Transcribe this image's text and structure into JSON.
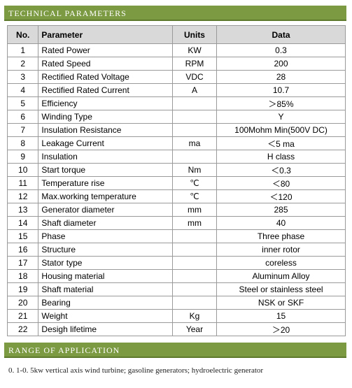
{
  "header": {
    "title": "TECHNICAL PARAMETERS"
  },
  "table": {
    "columns": [
      "No.",
      "Parameter",
      "Units",
      "Data"
    ],
    "rows": [
      {
        "no": "1",
        "parameter": "Rated Power",
        "units": "KW",
        "data": "0.3"
      },
      {
        "no": "2",
        "parameter": "Rated Speed",
        "units": "RPM",
        "data": "200"
      },
      {
        "no": "3",
        "parameter": "Rectified Rated Voltage",
        "units": "VDC",
        "data": "28"
      },
      {
        "no": "4",
        "parameter": "Rectified Rated Current",
        "units": "A",
        "data": "10.7"
      },
      {
        "no": "5",
        "parameter": "Efficiency",
        "data": "＞85%"
      },
      {
        "no": "6",
        "parameter": "Winding Type",
        "data": "Y"
      },
      {
        "no": "7",
        "parameter": "Insulation Resistance",
        "data": "100Mohm Min(500V DC)"
      },
      {
        "no": "8",
        "parameter": "Leakage Current",
        "units": "ma",
        "data": "＜5 ma"
      },
      {
        "no": "9",
        "parameter": "Insulation",
        "data": "H class"
      },
      {
        "no": "10",
        "parameter": "Start torque",
        "units": "Nm",
        "data": "＜0.3"
      },
      {
        "no": "11",
        "parameter": "Temperature rise",
        "units": "℃",
        "data": "＜80"
      },
      {
        "no": "12",
        "parameter": "Max.working temperature",
        "units": "℃",
        "data": "＜120"
      },
      {
        "no": "13",
        "parameter": "Generator diameter",
        "units": "mm",
        "data": "285"
      },
      {
        "no": "14",
        "parameter": "Shaft diameter",
        "units": "mm",
        "data": "40"
      },
      {
        "no": "15",
        "parameter": "Phase",
        "data": "Three phase"
      },
      {
        "no": "16",
        "parameter": "Structure",
        "data": "inner rotor"
      },
      {
        "no": "17",
        "parameter": "Stator type",
        "data": "coreless"
      },
      {
        "no": "18",
        "parameter": "Housing material",
        "data": "Aluminum Alloy"
      },
      {
        "no": "19",
        "parameter": "Shaft material",
        "data": "Steel or stainless steel"
      },
      {
        "no": "20",
        "parameter": "Bearing",
        "data": "NSK or SKF"
      },
      {
        "no": "21",
        "parameter": "Weight",
        "units": "Kg",
        "data": "15"
      },
      {
        "no": "22",
        "parameter": "Desigh lifetime",
        "units": "Year",
        "data": "＞20"
      }
    ]
  },
  "section": {
    "title": "RANGE OF APPLICATION"
  },
  "footer": {
    "text": "0. 1-0. 5kw  vertical axis wind turbine; gasoline generators; hydroelectric generator"
  }
}
